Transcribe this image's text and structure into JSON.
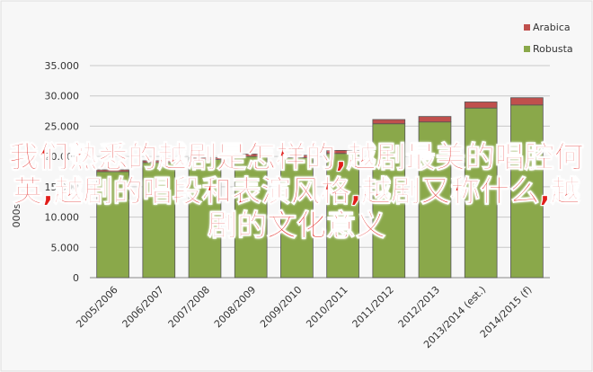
{
  "chart_data": {
    "type": "stacked-bar",
    "ylabel": "000s",
    "categories": [
      "2005/2006",
      "2006/2007",
      "2007/2008",
      "2008/2009",
      "2009/2010",
      "2010/2011",
      "2011/2012",
      "2012/2013",
      "2013/2014 (est.)",
      "2014/2015 (f)"
    ],
    "series": [
      {
        "name": "Robusta",
        "color": "#8aa84a",
        "values": [
          17500,
          19000,
          19500,
          20000,
          19800,
          20500,
          25400,
          25700,
          28000,
          28500
        ]
      },
      {
        "name": "Arabica",
        "color": "#c0504d",
        "values": [
          300,
          300,
          300,
          400,
          400,
          500,
          700,
          900,
          1000,
          1200
        ]
      }
    ],
    "legend_order": [
      1,
      0
    ],
    "ylim": [
      0,
      35000
    ],
    "yticks": [
      {
        "value": 0,
        "label": "0"
      },
      {
        "value": 5000,
        "label": "5.000"
      },
      {
        "value": 10000,
        "label": "10.000"
      },
      {
        "value": 15000,
        "label": "15.000"
      },
      {
        "value": 20000,
        "label": "20.000"
      },
      {
        "value": 25000,
        "label": "25.000"
      },
      {
        "value": 30000,
        "label": "30.000"
      },
      {
        "value": 35000,
        "label": "35.000"
      }
    ],
    "annotation": "我们熟悉的越剧是怎样的,越剧最美的唱腔何英,越剧的唱段和表演风格,越剧又称什么,越剧的文化意义"
  }
}
